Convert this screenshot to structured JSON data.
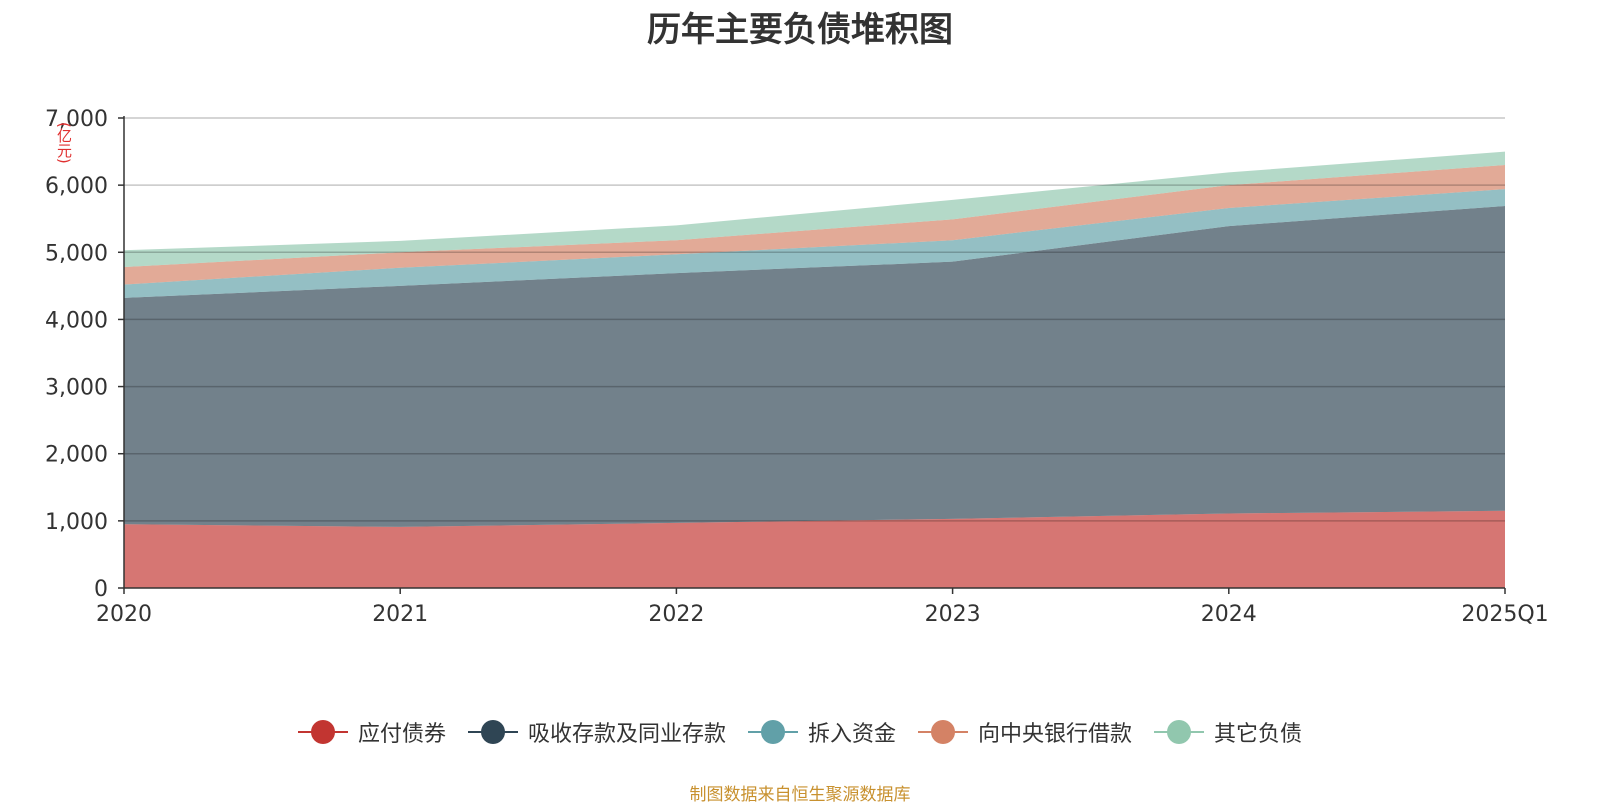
{
  "chart_data": {
    "type": "area",
    "stacked": true,
    "title": "历年主要负债堆积图",
    "unit_label": "(亿元)",
    "categories": [
      "2020",
      "2021",
      "2022",
      "2023",
      "2024",
      "2025Q1"
    ],
    "ylim": [
      0,
      7000
    ],
    "yticks": [
      0,
      1000,
      2000,
      3000,
      4000,
      5000,
      6000,
      7000
    ],
    "ytick_labels": [
      "0",
      "1,000",
      "2,000",
      "3,000",
      "4,000",
      "5,000",
      "6,000",
      "7,000"
    ],
    "grid": true,
    "legend_position": "bottom",
    "series": [
      {
        "name": "应付债券",
        "color": "#c23531",
        "values": [
          950,
          910,
          970,
          1030,
          1110,
          1150
        ]
      },
      {
        "name": "吸收存款及同业存款",
        "color": "#2f4554",
        "values": [
          3370,
          3590,
          3720,
          3830,
          4280,
          4540
        ]
      },
      {
        "name": "拆入资金",
        "color": "#61a0a8",
        "values": [
          200,
          270,
          280,
          320,
          270,
          250
        ]
      },
      {
        "name": "向中央银行借款",
        "color": "#d48265",
        "values": [
          260,
          230,
          210,
          310,
          340,
          360
        ]
      },
      {
        "name": "其它负债",
        "color": "#91c7ae",
        "values": [
          250,
          170,
          220,
          290,
          190,
          200
        ]
      }
    ]
  },
  "source_note": "制图数据来自恒生聚源数据库"
}
